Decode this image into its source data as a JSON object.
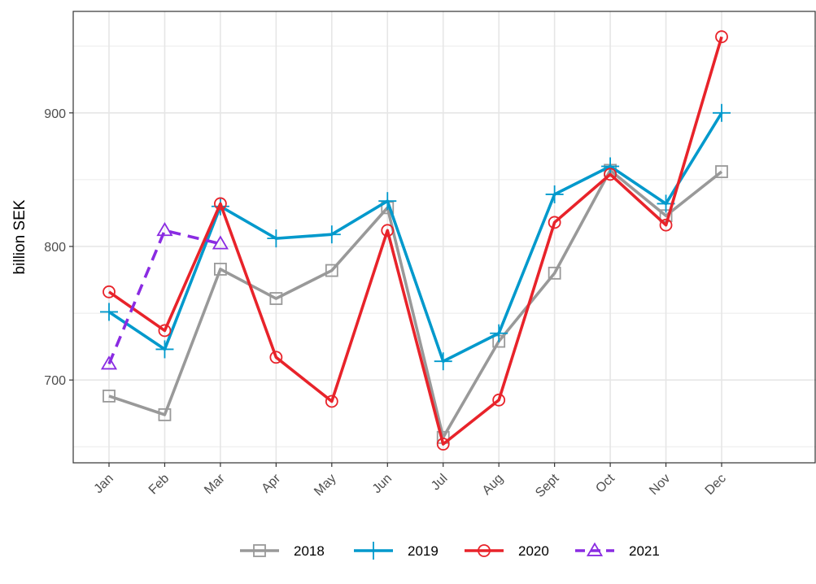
{
  "chart_data": {
    "type": "line",
    "categories": [
      "Jan",
      "Feb",
      "Mar",
      "Apr",
      "May",
      "Jun",
      "Jul",
      "Aug",
      "Sept",
      "Oct",
      "Nov",
      "Dec"
    ],
    "ylabel": "billion SEK",
    "xlabel": "",
    "ylim": [
      638,
      976
    ],
    "yticks": [
      700,
      800,
      900
    ],
    "grid": true,
    "legend_position": "bottom",
    "series": [
      {
        "name": "2018",
        "color": "#999999",
        "marker": "square",
        "dashed": false,
        "values": [
          688,
          674,
          783,
          761,
          782,
          829,
          657,
          729,
          780,
          857,
          823,
          856
        ]
      },
      {
        "name": "2019",
        "color": "#0099cc",
        "marker": "plus",
        "dashed": false,
        "values": [
          751,
          723,
          830,
          806,
          809,
          834,
          714,
          735,
          839,
          860,
          832,
          900
        ]
      },
      {
        "name": "2020",
        "color": "#e8232a",
        "marker": "circle",
        "dashed": false,
        "values": [
          766,
          737,
          832,
          717,
          684,
          812,
          652,
          685,
          818,
          854,
          816,
          957
        ]
      },
      {
        "name": "2021",
        "color": "#8a2be2",
        "marker": "triangle",
        "dashed": true,
        "values": [
          712,
          812,
          802,
          null,
          null,
          null,
          null,
          null,
          null,
          null,
          null,
          null
        ]
      }
    ]
  }
}
